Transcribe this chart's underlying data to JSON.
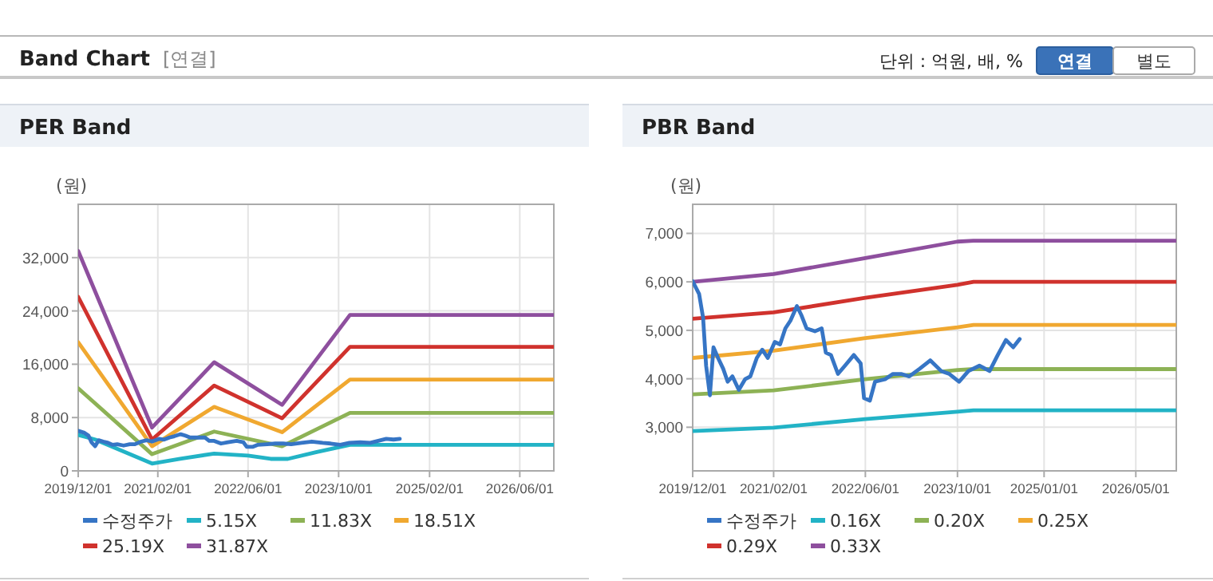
{
  "chart_data": [
    {
      "type": "other",
      "title": "Band Chart",
      "annotations": [
        "[연결]",
        "단위 : 억원, 배, %",
        "연결",
        "별도"
      ]
    },
    {
      "type": "line",
      "title": "PER Band",
      "ylabel": "(원)",
      "grid": true,
      "legend": "bottom",
      "marker": "none",
      "line_style": "solid",
      "xlim": [
        "2019-12-01",
        "2026-12-01"
      ],
      "xticks": [
        {
          "value": "2019-12-01",
          "label": "2019/12/01"
        },
        {
          "value": "2021-02-01",
          "label": "2021/02/01"
        },
        {
          "value": "2022-06-01",
          "label": "2022/06/01"
        },
        {
          "value": "2023-10-01",
          "label": "2023/10/01"
        },
        {
          "value": "2025-02-01",
          "label": "2025/02/01"
        },
        {
          "value": "2026-06-01",
          "label": "2026/06/01"
        }
      ],
      "ylim": [
        0,
        40000
      ],
      "yticks": [
        0,
        {
          "value": 8000,
          "label": "8,000"
        },
        {
          "value": 16000,
          "label": "16,000"
        },
        {
          "value": 24000,
          "label": "24,000"
        },
        {
          "value": 32000,
          "label": "32,000"
        }
      ],
      "series": [
        {
          "name": "수정주가",
          "color": "#3675c5",
          "x": [
            "2019-12-01",
            "2020-01-04",
            "2020-01-25",
            "2020-02-10",
            "2020-03-01",
            "2020-03-20",
            "2020-04-13",
            "2020-05-10",
            "2020-06-03",
            "2020-06-28",
            "2020-08-01",
            "2020-09-03",
            "2020-10-01",
            "2020-11-04",
            "2020-12-03",
            "2021-01-01",
            "2021-02-07",
            "2021-03-07",
            "2021-04-04",
            "2021-05-01",
            "2021-06-04",
            "2021-06-28",
            "2021-07-25",
            "2021-09-07",
            "2021-10-13",
            "2021-11-04",
            "2021-12-01",
            "2022-01-07",
            "2022-02-13",
            "2022-04-01",
            "2022-05-07",
            "2022-05-25",
            "2022-06-25",
            "2022-07-22",
            "2022-09-13",
            "2022-10-25",
            "2022-12-07",
            "2023-01-19",
            "2023-03-16",
            "2023-05-10",
            "2023-07-07",
            "2023-08-19",
            "2023-10-10",
            "2023-11-28",
            "2024-01-25",
            "2024-03-19",
            "2024-05-01",
            "2024-06-13",
            "2024-07-22",
            "2024-08-25"
          ],
          "values": [
            6000,
            5700,
            5300,
            4300,
            3700,
            4600,
            4400,
            4200,
            3900,
            4000,
            3800,
            4000,
            4000,
            4400,
            4600,
            4400,
            4800,
            4700,
            5000,
            5200,
            5500,
            5300,
            5000,
            5000,
            5000,
            4500,
            4500,
            4100,
            4300,
            4500,
            4300,
            3600,
            3600,
            3900,
            4000,
            4100,
            4100,
            4000,
            4200,
            4400,
            4200,
            4100,
            3900,
            4200,
            4300,
            4200,
            4500,
            4800,
            4700,
            4800
          ]
        },
        {
          "name": "5.15X",
          "color": "#22b3c6",
          "x": [
            "2019-12-01",
            "2020-03-01",
            "2021-01-01",
            "2021-06-01",
            "2021-12-01",
            "2022-06-01",
            "2022-10-01",
            "2023-01-01",
            "2023-06-01",
            "2023-12-01",
            "2026-12-01"
          ],
          "values": [
            5400,
            4700,
            1100,
            1800,
            2600,
            2300,
            1800,
            1800,
            2800,
            3900,
            3900
          ]
        },
        {
          "name": "11.83X",
          "color": "#8db255",
          "x": [
            "2019-12-01",
            "2021-01-01",
            "2021-12-01",
            "2022-12-01",
            "2023-12-01",
            "2026-12-01"
          ],
          "values": [
            12400,
            2500,
            5900,
            3700,
            8700,
            8700
          ]
        },
        {
          "name": "18.51X",
          "color": "#f0a830",
          "x": [
            "2019-12-01",
            "2021-01-01",
            "2021-12-01",
            "2022-12-01",
            "2023-12-01",
            "2026-12-01"
          ],
          "values": [
            19300,
            3700,
            9600,
            5800,
            13700,
            13700
          ]
        },
        {
          "name": "25.19X",
          "color": "#d0322d",
          "x": [
            "2019-12-01",
            "2021-01-01",
            "2021-12-01",
            "2022-12-01",
            "2023-12-01",
            "2026-12-01"
          ],
          "values": [
            26100,
            4700,
            12800,
            7900,
            18600,
            18600
          ]
        },
        {
          "name": "31.87X",
          "color": "#8e4f9e",
          "x": [
            "2019-12-01",
            "2021-01-01",
            "2021-12-01",
            "2022-12-01",
            "2023-12-01",
            "2026-12-01"
          ],
          "values": [
            33000,
            6500,
            16300,
            9900,
            23400,
            23400
          ]
        }
      ]
    },
    {
      "type": "line",
      "title": "PBR Band",
      "ylabel": "(원)",
      "grid": true,
      "legend": "bottom",
      "marker": "none",
      "line_style": "solid",
      "xlim": [
        "2019-12-01",
        "2026-12-01"
      ],
      "xticks": [
        {
          "value": "2019-12-01",
          "label": "2019/12/01"
        },
        {
          "value": "2021-02-01",
          "label": "2021/02/01"
        },
        {
          "value": "2022-06-01",
          "label": "2022/06/01"
        },
        {
          "value": "2023-10-01",
          "label": "2023/10/01"
        },
        {
          "value": "2025-01-01",
          "label": "2025/01/01"
        },
        {
          "value": "2026-05-01",
          "label": "2026/05/01"
        }
      ],
      "ylim": [
        2100,
        7600
      ],
      "yticks": [
        {
          "value": 3000,
          "label": "3,000"
        },
        {
          "value": 4000,
          "label": "4,000"
        },
        {
          "value": 5000,
          "label": "5,000"
        },
        {
          "value": 6000,
          "label": "6,000"
        },
        {
          "value": 7000,
          "label": "7,000"
        }
      ],
      "series": [
        {
          "name": "수정주가",
          "color": "#3675c5",
          "x": [
            "2019-12-01",
            "2020-01-04",
            "2020-01-25",
            "2020-02-10",
            "2020-03-01",
            "2020-03-20",
            "2020-04-13",
            "2020-05-10",
            "2020-06-03",
            "2020-06-28",
            "2020-08-01",
            "2020-09-03",
            "2020-10-01",
            "2020-11-04",
            "2020-12-03",
            "2021-01-01",
            "2021-02-07",
            "2021-03-07",
            "2021-04-04",
            "2021-05-01",
            "2021-06-04",
            "2021-06-28",
            "2021-07-25",
            "2021-09-07",
            "2021-10-13",
            "2021-11-04",
            "2021-12-01",
            "2022-01-07",
            "2022-02-13",
            "2022-04-01",
            "2022-05-07",
            "2022-05-25",
            "2022-06-25",
            "2022-07-22",
            "2022-09-13",
            "2022-10-25",
            "2022-12-07",
            "2023-01-19",
            "2023-03-16",
            "2023-05-10",
            "2023-07-07",
            "2023-08-19",
            "2023-10-10",
            "2023-11-28",
            "2024-01-25",
            "2024-03-19",
            "2024-05-01",
            "2024-06-13",
            "2024-07-22",
            "2024-08-25"
          ],
          "values": [
            6010,
            5750,
            5260,
            4270,
            3660,
            4650,
            4430,
            4210,
            3940,
            4050,
            3770,
            3990,
            4050,
            4430,
            4600,
            4430,
            4760,
            4710,
            5040,
            5200,
            5500,
            5310,
            5040,
            4980,
            5040,
            4540,
            4490,
            4100,
            4270,
            4490,
            4320,
            3600,
            3550,
            3940,
            3990,
            4100,
            4100,
            4050,
            4210,
            4380,
            4160,
            4100,
            3940,
            4160,
            4270,
            4160,
            4490,
            4800,
            4650,
            4820
          ]
        },
        {
          "name": "0.16X",
          "color": "#22b3c6",
          "x": [
            "2019-12-01",
            "2021-02-01",
            "2022-06-01",
            "2023-10-01",
            "2023-12-25",
            "2026-12-01"
          ],
          "values": [
            2920,
            2990,
            3170,
            3320,
            3350,
            3350
          ]
        },
        {
          "name": "0.20X",
          "color": "#8db255",
          "x": [
            "2019-12-01",
            "2021-02-01",
            "2022-06-01",
            "2023-10-01",
            "2023-12-25",
            "2026-12-01"
          ],
          "values": [
            3680,
            3760,
            3990,
            4180,
            4200,
            4200
          ]
        },
        {
          "name": "0.25X",
          "color": "#f0a830",
          "x": [
            "2019-12-01",
            "2021-02-01",
            "2022-06-01",
            "2023-10-01",
            "2023-12-25",
            "2026-12-01"
          ],
          "values": [
            4430,
            4580,
            4840,
            5060,
            5110,
            5110
          ]
        },
        {
          "name": "0.29X",
          "color": "#d0322d",
          "x": [
            "2019-12-01",
            "2021-02-01",
            "2022-06-01",
            "2023-10-01",
            "2023-12-25",
            "2026-12-01"
          ],
          "values": [
            5240,
            5370,
            5670,
            5940,
            6000,
            6000
          ]
        },
        {
          "name": "0.33X",
          "color": "#8e4f9e",
          "x": [
            "2019-12-01",
            "2021-02-01",
            "2022-06-01",
            "2023-10-01",
            "2023-12-25",
            "2026-12-01"
          ],
          "values": [
            6000,
            6160,
            6490,
            6830,
            6850,
            6850
          ]
        }
      ]
    }
  ]
}
